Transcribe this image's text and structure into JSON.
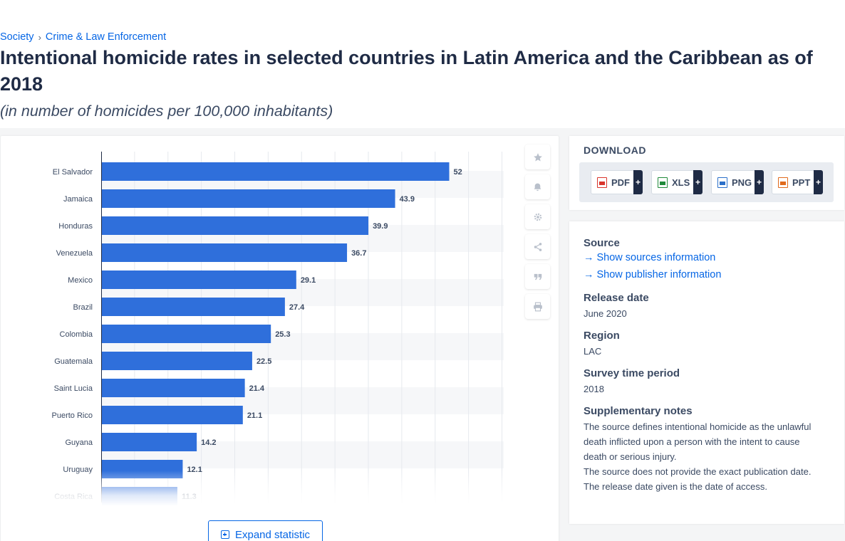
{
  "breadcrumb": {
    "root": "Society",
    "separator": "›",
    "section": "Crime & Law Enforcement"
  },
  "title": "Intentional homicide rates in selected countries in Latin America and the Caribbean as of 2018",
  "subtitle": "(in number of homicides per 100,000 inhabitants)",
  "chart_data": {
    "type": "bar",
    "orientation": "horizontal",
    "categories": [
      "El Salvador",
      "Jamaica",
      "Honduras",
      "Venezuela",
      "Mexico",
      "Brazil",
      "Colombia",
      "Guatemala",
      "Saint Lucia",
      "Puerto Rico",
      "Guyana",
      "Uruguay",
      "Costa Rica"
    ],
    "values": [
      52,
      43.9,
      39.9,
      36.7,
      29.1,
      27.4,
      25.3,
      22.5,
      21.4,
      21.1,
      14.2,
      12.1,
      11.3
    ],
    "value_labels": [
      "52",
      "43.9",
      "39.9",
      "36.7",
      "29.1",
      "27.4",
      "25.3",
      "22.5",
      "21.4",
      "21.1",
      "14.2",
      "12.1",
      "11.3"
    ],
    "xlim": [
      0,
      60
    ],
    "grid": true,
    "bar_color": "#2f6fdb"
  },
  "expand_button": {
    "label": "Expand statistic"
  },
  "tools": [
    "star-icon",
    "bell-icon",
    "gear-icon",
    "share-icon",
    "quote-icon",
    "print-icon"
  ],
  "download": {
    "title": "DOWNLOAD",
    "buttons": [
      {
        "label": "PDF",
        "color": "#d9342b"
      },
      {
        "label": "XLS",
        "color": "#1f8a3a"
      },
      {
        "label": "PNG",
        "color": "#2a6fc9"
      },
      {
        "label": "PPT",
        "color": "#e06a1c"
      }
    ],
    "plus": "+"
  },
  "info": {
    "source_label": "Source",
    "show_sources": "Show sources information",
    "show_publisher": "Show publisher information",
    "release_label": "Release date",
    "release_value": "June 2020",
    "region_label": "Region",
    "region_value": "LAC",
    "survey_label": "Survey time period",
    "survey_value": "2018",
    "notes_label": "Supplementary notes",
    "notes_1": "The source defines intentional homicide as the unlawful death inflicted upon a person with the intent to cause death or serious injury.",
    "notes_2": "The source does not provide the exact publication date. The release date given is the date of access."
  }
}
